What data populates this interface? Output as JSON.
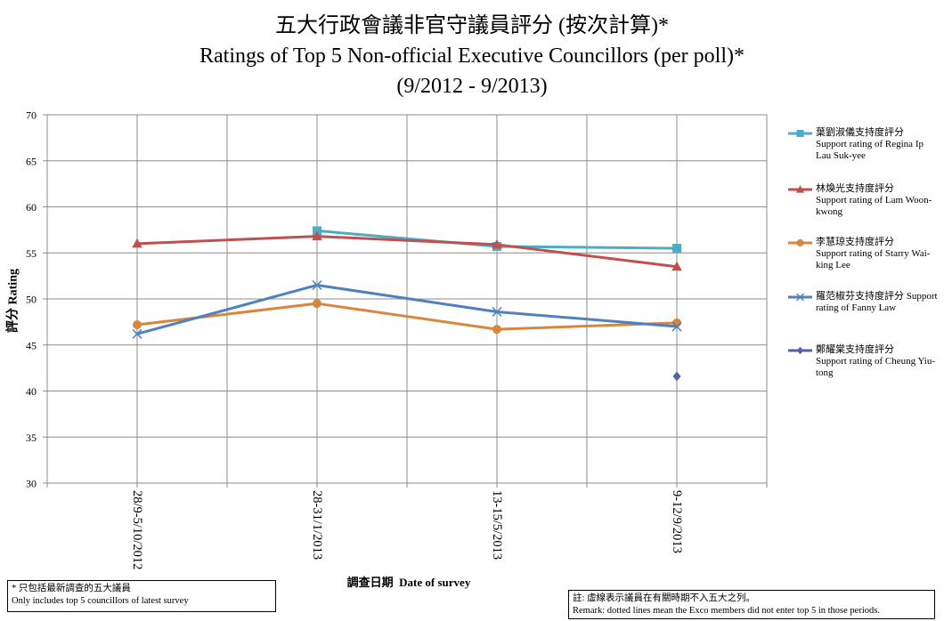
{
  "chart_data": {
    "type": "line",
    "title": "五大行政會議非官守議員評分 (按次計算)*",
    "subtitle": "Ratings of Top 5 Non-official Executive Councillors (per poll)*",
    "period": "(9/2012 - 9/2013)",
    "xlabel": "調查日期  Date of survey",
    "ylabel": "評分 Rating",
    "categories": [
      "28/9-5/10/2012",
      "28-31/1/2013",
      "13-15/5/2013",
      "9-12/9/2013"
    ],
    "ylim": [
      30,
      70
    ],
    "yticks": [
      70,
      65,
      60,
      55,
      50,
      45,
      40,
      35,
      30
    ],
    "grid": true,
    "legend_position": "right",
    "series": [
      {
        "name": "葉劉淑儀支持度評分\nSupport rating of Regina Ip Lau Suk-yee",
        "color": "#4BACC6",
        "marker": "square",
        "values": [
          null,
          57.4,
          55.7,
          55.5
        ]
      },
      {
        "name": "林煥光支持度評分\nSupport rating of Lam Woon-kwong",
        "color": "#C0504D",
        "marker": "triangle",
        "values": [
          56.0,
          56.8,
          55.9,
          53.5
        ]
      },
      {
        "name": "李慧琼支持度評分\nSupport rating of Starry Wai-king Lee",
        "color": "#D7873D",
        "marker": "circle",
        "values": [
          47.2,
          49.5,
          46.7,
          47.4
        ]
      },
      {
        "name": "羅范椒芬支持度評分 Support rating of Fanny Law",
        "color": "#4F81BD",
        "marker": "x",
        "values": [
          46.2,
          51.5,
          48.6,
          47.0
        ]
      },
      {
        "name": "鄭耀棠支持度評分\nSupport rating of Cheung Yiu-tong",
        "color": "#5560A8",
        "marker": "diamond",
        "values": [
          null,
          null,
          null,
          41.6
        ]
      }
    ]
  },
  "notes": {
    "left_zh": "* 只包括最新調查的五大議員",
    "left_en": "Only includes top 5 councillors of latest survey",
    "right_zh": "註: 虛線表示議員在有關時期不入五大之列。",
    "right_en": "Remark: dotted lines mean the Exco members did not enter top 5 in those periods."
  }
}
